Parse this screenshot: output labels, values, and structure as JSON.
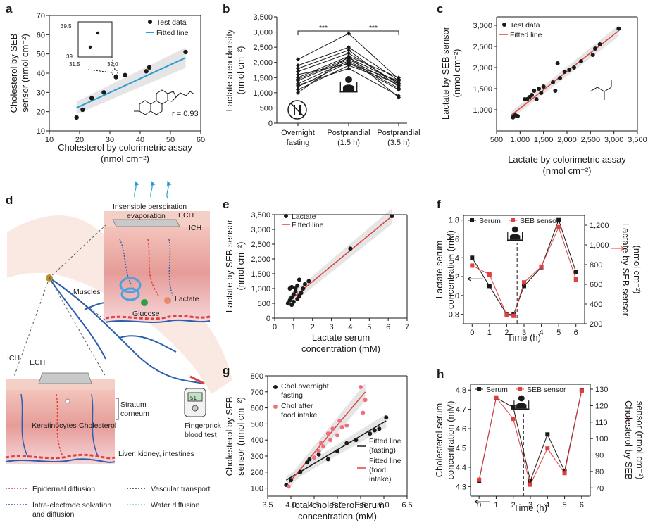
{
  "figure": {
    "colors": {
      "blue_fit": "#2a9fd6",
      "red_fit": "#e0413f",
      "red_light": "#ef6f7f",
      "band_gray": "#dcdcdc",
      "ink": "#1a1a1a"
    }
  },
  "panel_d": {
    "letter": "d",
    "insensible": "Insensible perspiration",
    "evaporation": "evaporation",
    "ech_top": "ECH",
    "ich_top": "ICH",
    "muscles": "Muscles",
    "lactate": "Lactate",
    "glucose": "Glucose",
    "ich_bottom": "ICH",
    "ech_bottom": "ECH",
    "stratum": "Stratum",
    "corneum": "corneum",
    "keratinocytes": "Keratinocytes",
    "cholesterol": "Cholesterol",
    "fingerprick1": "Fingerprick",
    "fingerprick2": "blood test",
    "liver": "Liver, kidney, intestines",
    "meter_value": "51",
    "legend_epidermal": "Epidermal diffusion",
    "legend_vascular": "Vascular transport",
    "legend_intra1": "Intra-electrode solvation",
    "legend_intra2": "and diffusion",
    "legend_water": "Water diffusion"
  },
  "chart_data": [
    {
      "id": "a",
      "type": "scatter",
      "letter": "a",
      "xlabel": "Cholesterol by colorimetric assay",
      "xunit": "(nmol cm⁻²)",
      "ylabel1": "Cholesterol by SEB",
      "ylabel2": "sensor (nmol cm⁻²)",
      "xlim": [
        10,
        60
      ],
      "ylim": [
        10,
        70
      ],
      "xticks": [
        "10",
        "20",
        "30",
        "40",
        "50",
        "60"
      ],
      "yticks": [
        "10",
        "20",
        "30",
        "40",
        "50",
        "60",
        "70"
      ],
      "x": [
        19,
        21,
        24,
        28,
        32,
        35,
        42,
        43,
        55
      ],
      "y": [
        17,
        21,
        27,
        30,
        38,
        39,
        41,
        43,
        51
      ],
      "fit": [
        [
          19,
          22
        ],
        [
          55,
          48
        ]
      ],
      "legend": [
        "Test data",
        "Fitted line"
      ],
      "r_label": "r = 0.93",
      "inset": {
        "ytop": "39.5",
        "ybot": "39",
        "xleft": "31.5",
        "xright": "32.0"
      }
    },
    {
      "id": "b",
      "type": "line",
      "letter": "b",
      "ylabel": "Lactate area density",
      "yunit": "(nmol cm⁻²)",
      "ylim": [
        0,
        3500
      ],
      "yticks": [
        "0",
        "500",
        "1,000",
        "1,500",
        "2,000",
        "2,500",
        "3,000",
        "3,500"
      ],
      "categories": [
        [
          "Overnight",
          "fasting"
        ],
        [
          "Postprandial",
          "(1.5 h)"
        ],
        [
          "Postprandial",
          "(3.5 h)"
        ]
      ],
      "sig": [
        "***",
        "***"
      ],
      "series": [
        [
          2100,
          2950,
          1450
        ],
        [
          1900,
          2500,
          1400
        ],
        [
          1800,
          2400,
          1200
        ],
        [
          1700,
          2300,
          1300
        ],
        [
          1500,
          2200,
          1500
        ],
        [
          1450,
          2150,
          1350
        ],
        [
          1400,
          2100,
          1250
        ],
        [
          1300,
          2050,
          1150
        ],
        [
          1200,
          2000,
          1100
        ],
        [
          1100,
          1900,
          1300
        ],
        [
          1000,
          2200,
          850
        ],
        [
          1250,
          1800,
          900
        ],
        [
          1600,
          1950,
          1400
        ]
      ]
    },
    {
      "id": "c",
      "type": "scatter",
      "letter": "c",
      "xlabel": "Lactate by colorimetric assay",
      "xunit": "(nmol cm⁻²)",
      "ylabel1": "Lactate by SEB sensor",
      "ylabel2": "(nmol cm⁻²)",
      "xlim": [
        500,
        3500
      ],
      "ylim": [
        500,
        3200
      ],
      "xticks": [
        "500",
        "1,000",
        "1,500",
        "2,000",
        "2,500",
        "3,000",
        "3,500"
      ],
      "yticks": [
        "1,000",
        "1,500",
        "2,000",
        "2,500",
        "3,000"
      ],
      "x": [
        850,
        900,
        950,
        1100,
        1150,
        1200,
        1250,
        1300,
        1350,
        1400,
        1450,
        1500,
        1700,
        1750,
        1800,
        1850,
        1950,
        2050,
        2150,
        2300,
        2550,
        2600,
        2700,
        3100
      ],
      "y": [
        820,
        870,
        850,
        1250,
        1250,
        1300,
        1350,
        1450,
        1250,
        1500,
        1400,
        1550,
        1650,
        1450,
        2100,
        1750,
        1900,
        1950,
        2000,
        2150,
        2300,
        2450,
        2550,
        2920
      ],
      "fit": [
        [
          800,
          860
        ],
        [
          3100,
          2870
        ]
      ],
      "legend": [
        "Test data",
        "Fitted line"
      ]
    },
    {
      "id": "e",
      "type": "scatter",
      "letter": "e",
      "xlabel": "Lactate serum",
      "xunit": "concentration (mM)",
      "ylabel1": "Lactate by SEB sensor",
      "ylabel2": "(nmol cm⁻²)",
      "xlim": [
        0,
        7
      ],
      "ylim": [
        0,
        3500
      ],
      "xticks": [
        "0",
        "1",
        "2",
        "3",
        "4",
        "5",
        "6",
        "7"
      ],
      "yticks": [
        "0",
        "500",
        "1,000",
        "1,500",
        "2,000",
        "2,500",
        "3,000",
        "3,500"
      ],
      "x": [
        0.7,
        0.8,
        0.8,
        0.9,
        0.9,
        1.0,
        1.0,
        1.1,
        1.2,
        1.2,
        1.3,
        1.4,
        1.5,
        1.6,
        1.8,
        0.9,
        1.1,
        1.3,
        4.0,
        6.2
      ],
      "y": [
        500,
        600,
        1000,
        700,
        1050,
        550,
        800,
        900,
        650,
        1100,
        1300,
        850,
        1000,
        1150,
        1250,
        450,
        1000,
        750,
        2350,
        3450
      ],
      "fit": [
        [
          0.7,
          550
        ],
        [
          6.2,
          3450
        ]
      ],
      "legend": [
        "Lactate",
        "Fitted line"
      ]
    },
    {
      "id": "f",
      "type": "line",
      "letter": "f",
      "ylabel1": "Lactate serum",
      "ylabel2": "concentration (mM)",
      "ylabel_right1": "Lactate by SEB sensor",
      "ylabel_right2": "(nmol cm⁻²)",
      "xlabel": "Time (h)",
      "xlim": [
        -0.5,
        6.5
      ],
      "ylim": [
        0.7,
        1.85
      ],
      "y2lim": [
        200,
        1300
      ],
      "xticks": [
        "0",
        "1",
        "2",
        "3",
        "4",
        "5",
        "6"
      ],
      "yticks": [
        "0.8",
        "1.0",
        "1.2",
        "1.4",
        "1.6",
        "1.8"
      ],
      "y2ticks": [
        "200",
        "400",
        "600",
        "800",
        "1,000",
        "1,200"
      ],
      "series": [
        {
          "name": "Serum",
          "x": [
            0,
            1,
            2,
            2.4,
            3,
            4,
            5,
            6
          ],
          "y": [
            1.4,
            1.1,
            0.8,
            0.8,
            1.1,
            1.3,
            1.8,
            1.25
          ]
        },
        {
          "name": "SEB sensor",
          "x": [
            0,
            1,
            2,
            2.4,
            3,
            4,
            5,
            6
          ],
          "y": [
            790,
            700,
            290,
            280,
            620,
            780,
            1180,
            650
          ]
        }
      ],
      "meal_x": 2.6
    },
    {
      "id": "g",
      "type": "scatter",
      "letter": "g",
      "xlabel": "Total cholesterol serum",
      "xunit": "concentration (mM)",
      "ylabel1": "Cholesterol by SEB",
      "ylabel2": "sensor (nmol cm⁻²)",
      "xlim": [
        3.5,
        6.5
      ],
      "ylim": [
        50,
        800
      ],
      "xticks": [
        "3.5",
        "4.0",
        "4.5",
        "5.0",
        "5.5",
        "6.0",
        "6.5"
      ],
      "yticks": [
        "100",
        "200",
        "300",
        "400",
        "500",
        "600",
        "700",
        "800"
      ],
      "series": [
        {
          "name": "Chol overnight fasting",
          "x": [
            3.9,
            4.0,
            4.2,
            4.35,
            4.4,
            4.6,
            4.8,
            5.0,
            5.2,
            5.4,
            5.7,
            5.8,
            5.9,
            6.05
          ],
          "y": [
            120,
            150,
            200,
            260,
            280,
            310,
            280,
            330,
            380,
            400,
            440,
            460,
            470,
            540
          ]
        },
        {
          "name": "Chol after food intake",
          "x": [
            3.95,
            4.5,
            4.6,
            4.65,
            4.7,
            4.8,
            4.85,
            4.9,
            5.0,
            5.05,
            5.1,
            5.2,
            5.5,
            5.55,
            5.6
          ],
          "y": [
            110,
            290,
            330,
            380,
            360,
            440,
            400,
            470,
            430,
            520,
            480,
            490,
            730,
            570,
            650
          ]
        }
      ],
      "fit_fasting": [
        [
          3.9,
          150
        ],
        [
          6.05,
          520
        ]
      ],
      "fit_food": [
        [
          3.95,
          130
        ],
        [
          5.6,
          700
        ]
      ],
      "legend_fit_fasting": [
        "Fitted line",
        "(fasting)"
      ],
      "legend_fit_food1": "Fitted line",
      "legend_fit_food2": "(food",
      "legend_fit_food3": "intake)",
      "legend_s1a": "Chol overnight",
      "legend_s1b": "fasting",
      "legend_s2a": "Chol after",
      "legend_s2b": "food intake"
    },
    {
      "id": "h",
      "type": "line",
      "letter": "h",
      "ylabel1": "Cholesterol serum",
      "ylabel2": "concentration (mM)",
      "ylabel_right1": "Cholesterol by SEB",
      "ylabel_right2": "sensor (nmol cm⁻²)",
      "xlabel": "Time (h)",
      "xlim": [
        -0.5,
        6.5
      ],
      "ylim": [
        4.25,
        4.83
      ],
      "y2lim": [
        65,
        133
      ],
      "xticks": [
        "0",
        "1",
        "2",
        "3",
        "4",
        "5",
        "6"
      ],
      "yticks": [
        "4.3",
        "4.4",
        "4.5",
        "4.6",
        "4.7",
        "4.8"
      ],
      "y2ticks": [
        "70",
        "80",
        "90",
        "100",
        "110",
        "120",
        "130"
      ],
      "series": [
        {
          "name": "Serum",
          "x": [
            0,
            1,
            2,
            3,
            4,
            5,
            6
          ],
          "y": [
            4.33,
            4.76,
            4.71,
            4.33,
            4.57,
            4.38,
            4.8
          ]
        },
        {
          "name": "SEB sensor",
          "x": [
            0,
            1,
            2,
            3,
            4,
            5,
            6
          ],
          "y": [
            75,
            125,
            112,
            72,
            94,
            79,
            129
          ]
        }
      ],
      "meal_x": 2.6
    }
  ]
}
